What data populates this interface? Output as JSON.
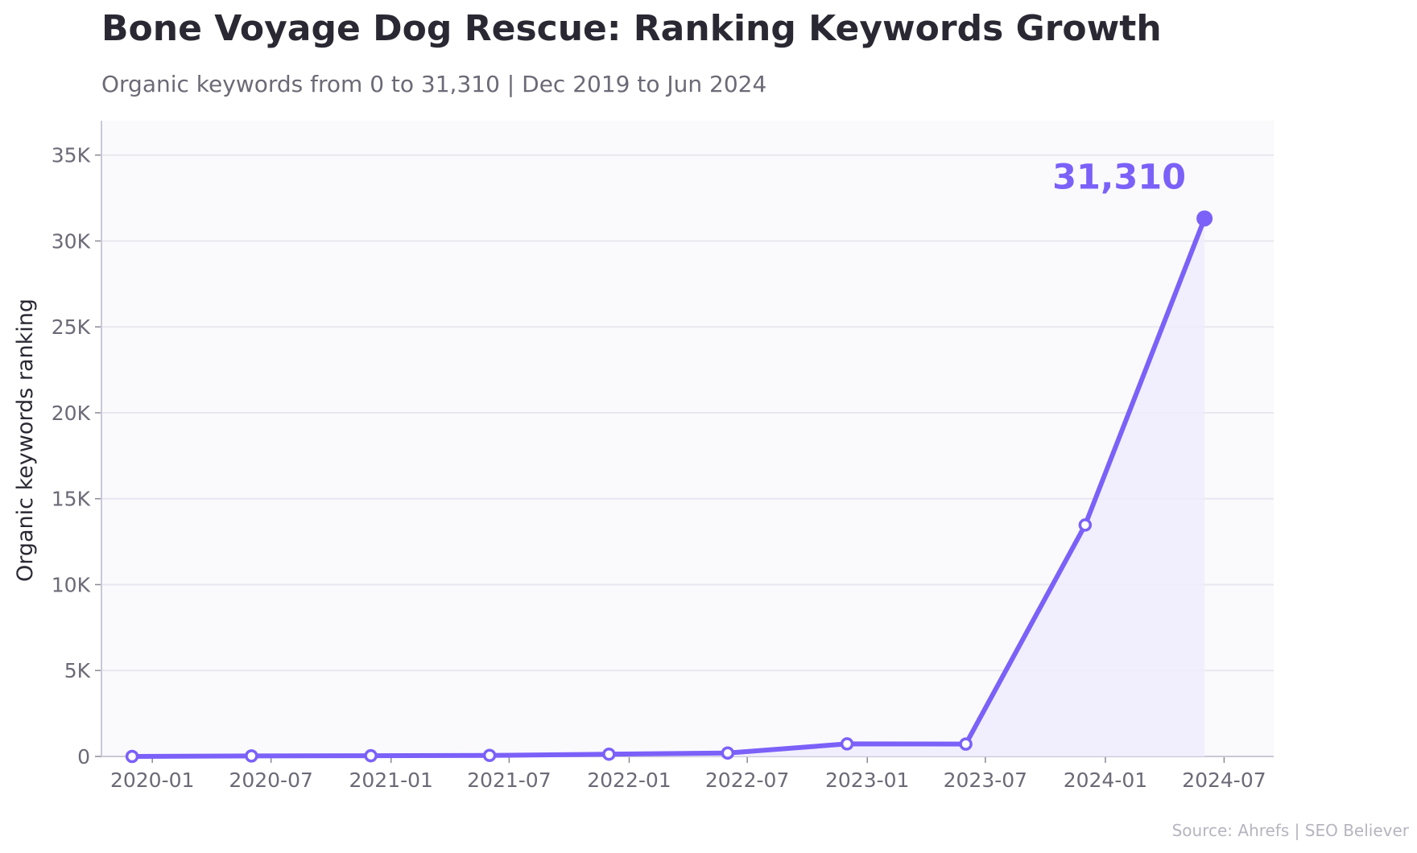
{
  "header": {
    "title": "Bone Voyage Dog Rescue: Ranking Keywords Growth",
    "subtitle": "Organic keywords from 0 to 31,310  |  Dec 2019 to Jun 2024"
  },
  "footer": {
    "source": "Source: Ahrefs  |  SEO Believer"
  },
  "colors": {
    "line": "#7b61f8",
    "fill": "#efecfd",
    "plot_bg": "#fafafd",
    "grid": "#e8e7ef",
    "axis": "#c9c8d6"
  },
  "chart_data": {
    "type": "line",
    "title": "Bone Voyage Dog Rescue: Ranking Keywords Growth",
    "xlabel": "",
    "ylabel": "Organic keywords ranking",
    "x": [
      "2019-12",
      "2020-06",
      "2020-12",
      "2021-06",
      "2021-12",
      "2022-06",
      "2022-12",
      "2023-06",
      "2023-12",
      "2024-06"
    ],
    "series": [
      {
        "values": [
          0,
          30,
          40,
          60,
          130,
          200,
          730,
          720,
          13470,
          31310
        ]
      }
    ],
    "ylim": [
      0,
      37000
    ],
    "xlim": [
      "2019-10-15",
      "2024-09-15"
    ],
    "yticks": [
      0,
      5000,
      10000,
      15000,
      20000,
      25000,
      30000,
      35000
    ],
    "ytick_labels": [
      "0",
      "5K",
      "10K",
      "15K",
      "20K",
      "25K",
      "30K",
      "35K"
    ],
    "xticks": [
      "2020-01",
      "2020-07",
      "2021-01",
      "2021-07",
      "2022-01",
      "2022-07",
      "2023-01",
      "2023-07",
      "2024-01",
      "2024-07"
    ],
    "xtick_labels": [
      "2020-01",
      "2020-07",
      "2021-01",
      "2021-07",
      "2022-01",
      "2022-07",
      "2023-01",
      "2023-07",
      "2024-01",
      "2024-07"
    ],
    "annotation": {
      "x": "2024-06",
      "y": 31310,
      "text": "31,310"
    },
    "grid": true,
    "legend": "none"
  }
}
